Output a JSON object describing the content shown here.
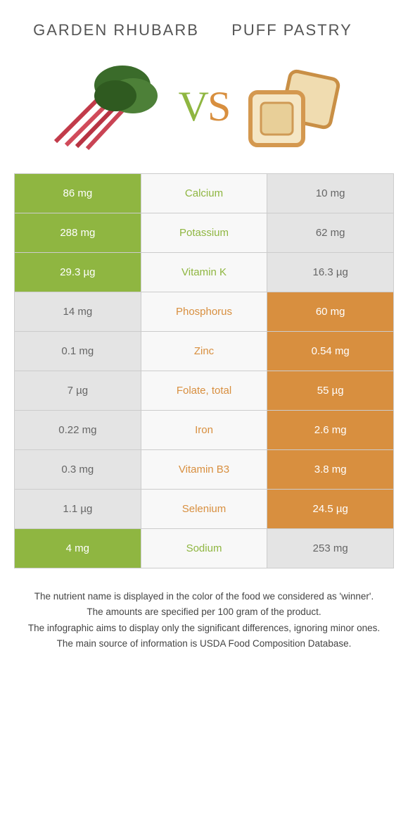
{
  "colors": {
    "left_food": "#8fb641",
    "right_food": "#d88f3f",
    "left_loser": "#e4e4e4",
    "right_loser": "#e4e4e4",
    "loser_text": "#666"
  },
  "left_title": "Garden rhubarb",
  "right_title": "Puff pastry",
  "rows": [
    {
      "nutrient": "Calcium",
      "left": "86 mg",
      "right": "10 mg",
      "winner": "left"
    },
    {
      "nutrient": "Potassium",
      "left": "288 mg",
      "right": "62 mg",
      "winner": "left"
    },
    {
      "nutrient": "Vitamin K",
      "left": "29.3 µg",
      "right": "16.3 µg",
      "winner": "left"
    },
    {
      "nutrient": "Phosphorus",
      "left": "14 mg",
      "right": "60 mg",
      "winner": "right"
    },
    {
      "nutrient": "Zinc",
      "left": "0.1 mg",
      "right": "0.54 mg",
      "winner": "right"
    },
    {
      "nutrient": "Folate, total",
      "left": "7 µg",
      "right": "55 µg",
      "winner": "right"
    },
    {
      "nutrient": "Iron",
      "left": "0.22 mg",
      "right": "2.6 mg",
      "winner": "right"
    },
    {
      "nutrient": "Vitamin B3",
      "left": "0.3 mg",
      "right": "3.8 mg",
      "winner": "right"
    },
    {
      "nutrient": "Selenium",
      "left": "1.1 µg",
      "right": "24.5 µg",
      "winner": "right"
    },
    {
      "nutrient": "Sodium",
      "left": "4 mg",
      "right": "253 mg",
      "winner": "left"
    }
  ],
  "notes": [
    "The nutrient name is displayed in the color of the food we considered as 'winner'.",
    "The amounts are specified per 100 gram of the product.",
    "The infographic aims to display only the significant differences, ignoring minor ones.",
    "The main source of information is USDA Food Composition Database."
  ]
}
